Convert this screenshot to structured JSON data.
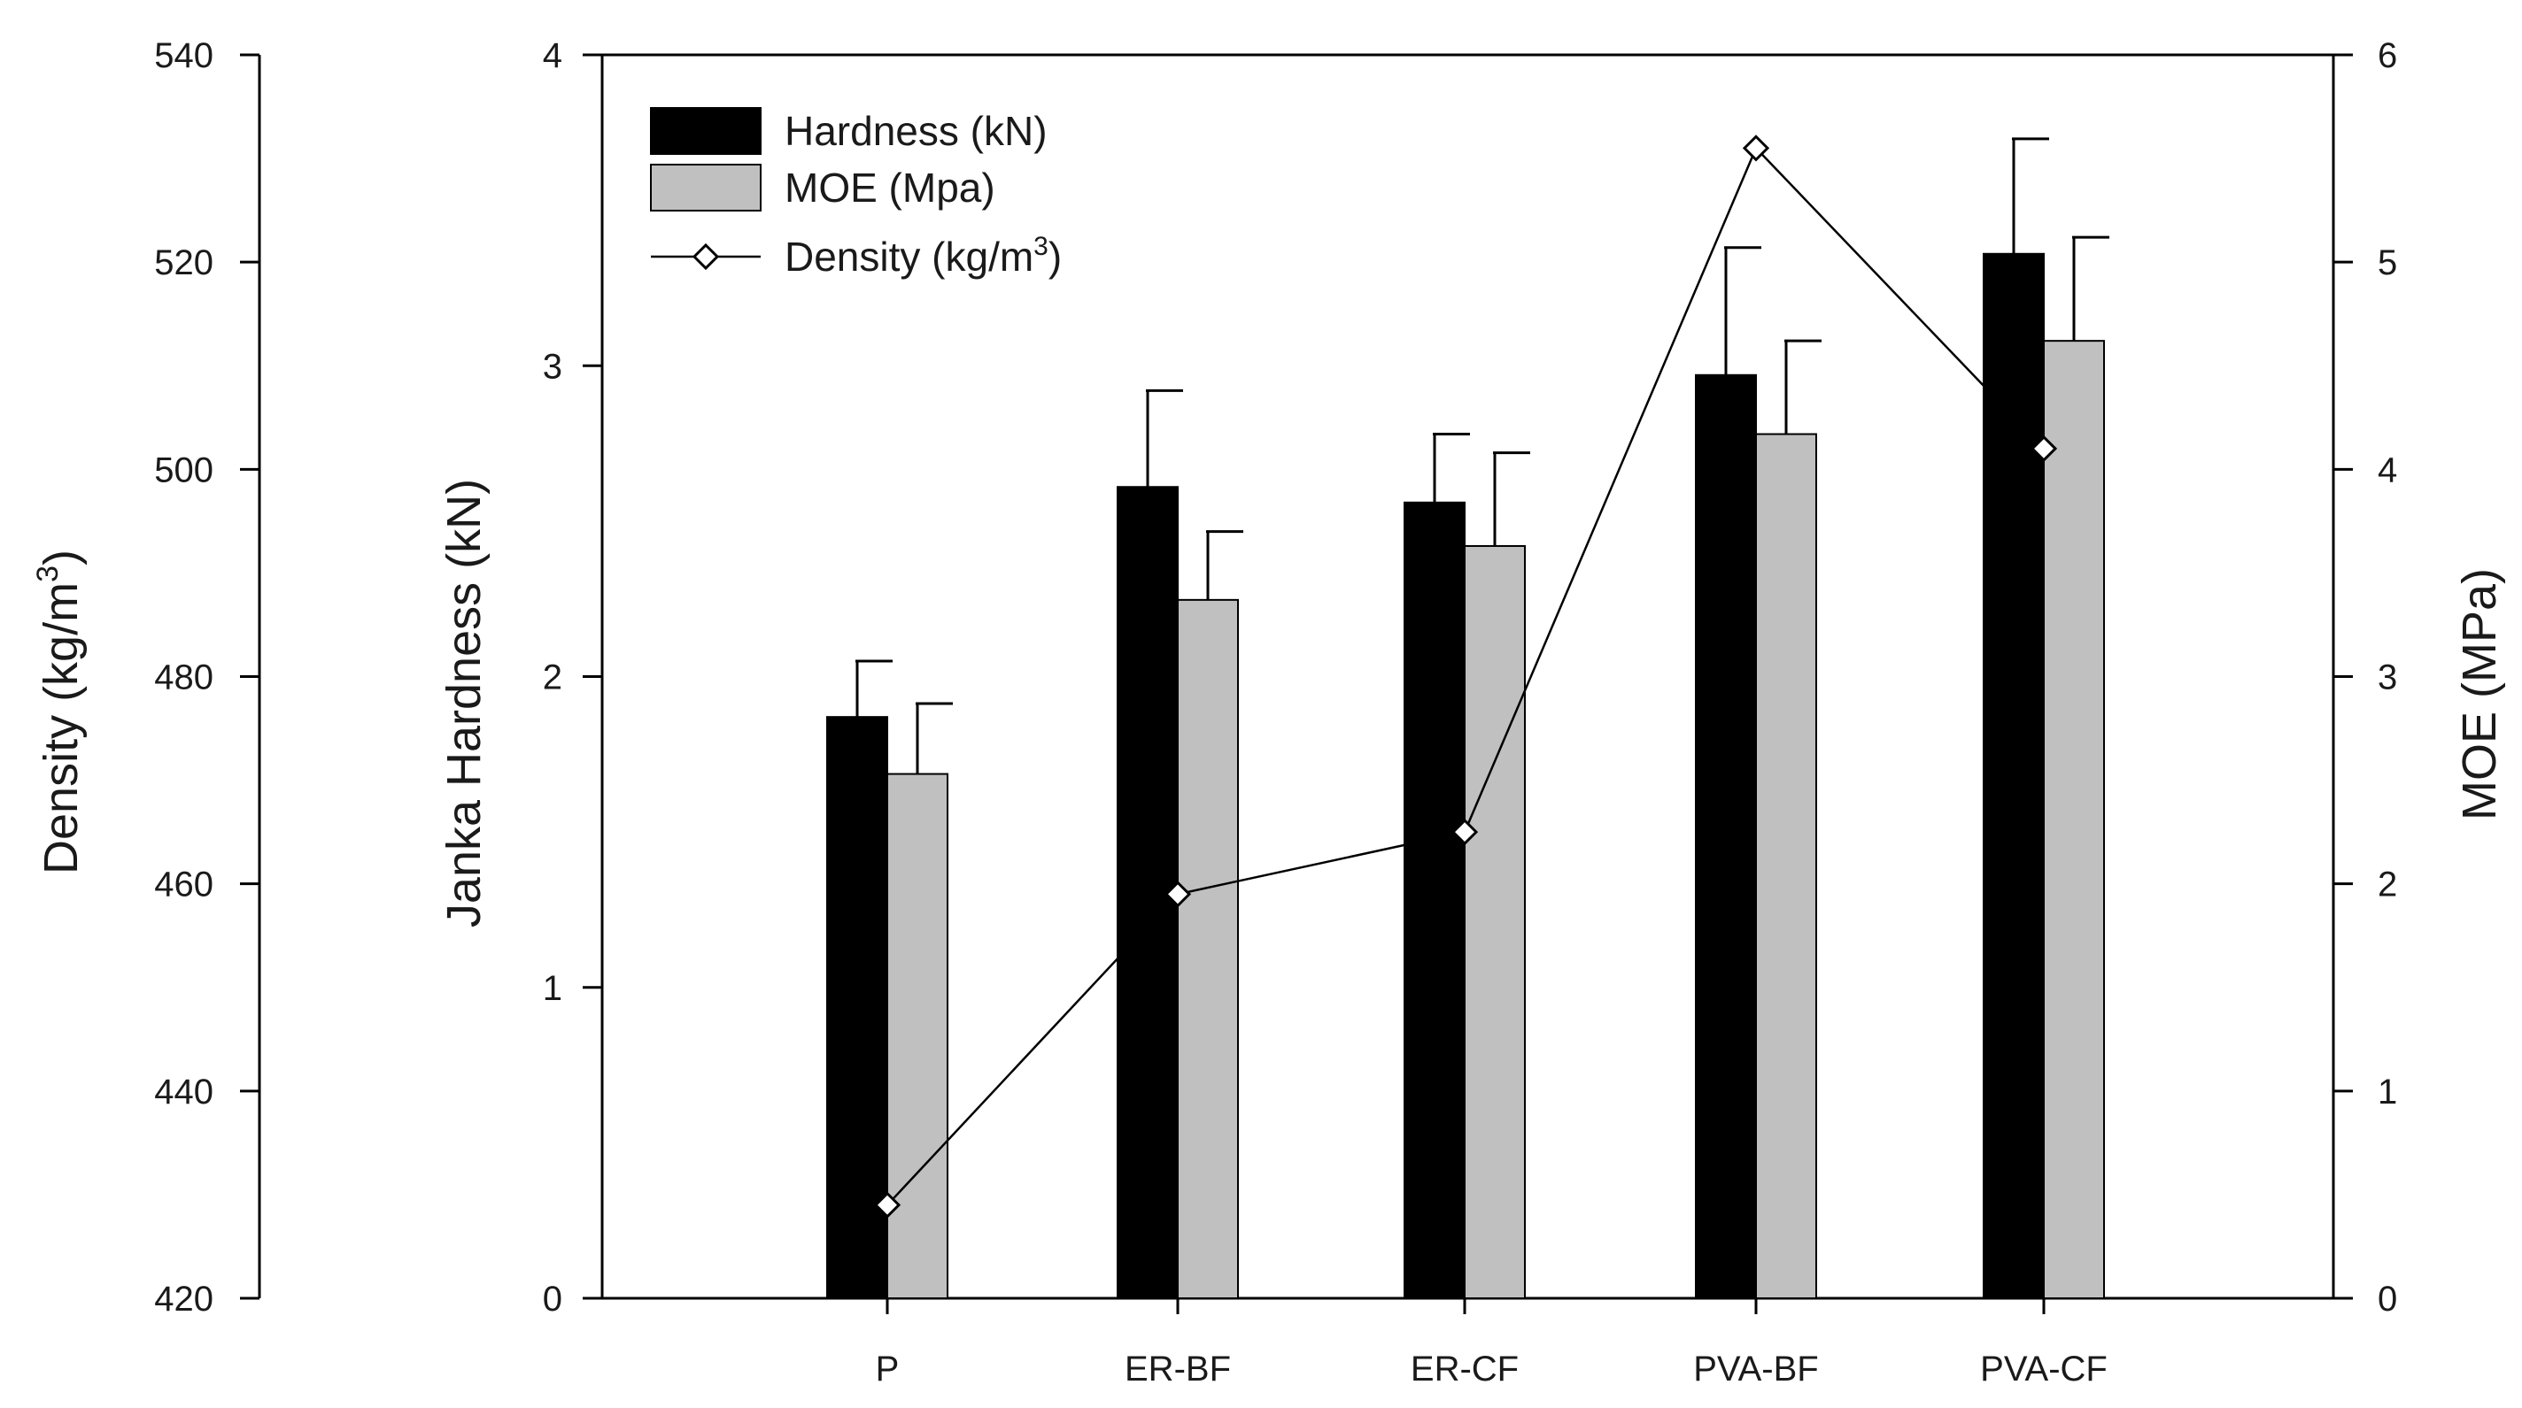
{
  "chart_data": {
    "type": "bar",
    "categories": [
      "P",
      "ER-BF",
      "ER-CF",
      "PVA-BF",
      "PVA-CF"
    ],
    "series": [
      {
        "name": "Hardness (kN)",
        "axis": "left-inner",
        "color": "#000000",
        "values": [
          1.87,
          2.61,
          2.56,
          2.97,
          3.36
        ],
        "errors": [
          0.18,
          0.31,
          0.22,
          0.41,
          0.37
        ]
      },
      {
        "name": "MOE (Mpa)",
        "axis": "right",
        "color": "#c0c0c0",
        "values": [
          2.53,
          3.37,
          3.63,
          4.17,
          4.62
        ],
        "errors": [
          0.34,
          0.33,
          0.45,
          0.45,
          0.5
        ]
      },
      {
        "name": "Density (kg/m3)",
        "axis": "left-outer",
        "type": "line",
        "color": "#000000",
        "values": [
          429,
          459,
          465,
          531,
          502
        ]
      }
    ],
    "axes": {
      "density": {
        "label": "Density (kg/m",
        "label_sup": "3",
        "label_end": ")",
        "ylim": [
          420,
          540
        ],
        "ticks": [
          "420",
          "440",
          "460",
          "480",
          "500",
          "520",
          "540"
        ]
      },
      "hardness": {
        "label": "Janka Hardness (kN)",
        "ylim": [
          0,
          4
        ],
        "ticks": [
          "0",
          "1",
          "2",
          "3",
          "4"
        ]
      },
      "moe": {
        "label": "MOE (MPa)",
        "ylim": [
          0,
          6
        ],
        "ticks": [
          "0",
          "1",
          "2",
          "3",
          "4",
          "5",
          "6"
        ]
      }
    },
    "legend": {
      "position": "top-left",
      "items": [
        {
          "label": "Hardness (kN)",
          "sup": ""
        },
        {
          "label": "MOE (Mpa)",
          "sup": ""
        },
        {
          "label": "Density (kg/m",
          "sup": "3",
          "end": ")"
        }
      ]
    }
  }
}
